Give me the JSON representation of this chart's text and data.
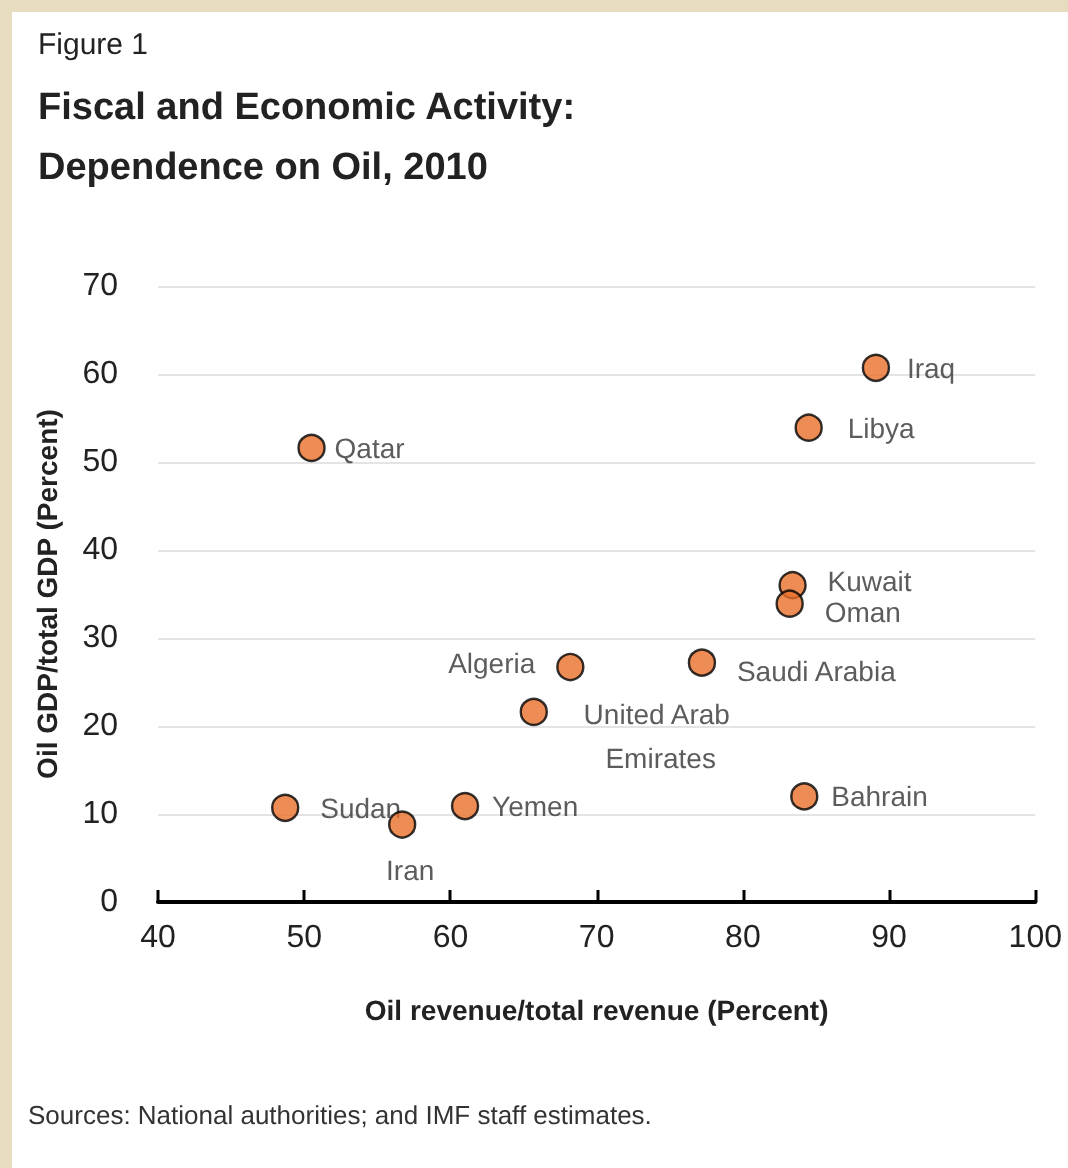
{
  "chart_data": {
    "type": "scatter",
    "subtitle": "Figure 1",
    "title": "Fiscal and Economic Activity: Dependence on Oil, 2010",
    "xlabel": "Oil revenue/total revenue (Percent)",
    "ylabel": "Oil GDP/total GDP (Percent)",
    "x": [
      50.5,
      89.1,
      84.5,
      83.4,
      83.2,
      77.2,
      68.2,
      65.7,
      84.2,
      61.0,
      48.7,
      56.7
    ],
    "values": [
      51.6,
      60.7,
      53.9,
      36.0,
      33.9,
      27.2,
      26.7,
      21.6,
      12.0,
      10.9,
      10.7,
      8.8
    ],
    "color": "#e8702a",
    "marker": "circle",
    "xlim": [
      40,
      100
    ],
    "xticks": [
      40,
      50,
      60,
      70,
      80,
      90,
      100
    ],
    "ylim": [
      0,
      70
    ],
    "yticks": [
      0,
      10,
      20,
      30,
      40,
      50,
      60,
      70
    ],
    "grid": "y",
    "annotations": [
      {
        "text": "Qatar",
        "x": 50.5,
        "y": 51.6
      },
      {
        "text": "Iraq",
        "x": 89.1,
        "y": 60.7
      },
      {
        "text": "Libya",
        "x": 84.5,
        "y": 53.9
      },
      {
        "text": "Kuwait",
        "x": 83.4,
        "y": 36.0
      },
      {
        "text": "Oman",
        "x": 83.2,
        "y": 33.9
      },
      {
        "text": "Saudi Arabia",
        "x": 77.2,
        "y": 27.2
      },
      {
        "text": "Algeria",
        "x": 68.2,
        "y": 26.7
      },
      {
        "text": "United Arab Emirates",
        "x": 65.7,
        "y": 21.6
      },
      {
        "text": "Bahrain",
        "x": 84.2,
        "y": 12.0
      },
      {
        "text": "Yemen",
        "x": 61.0,
        "y": 10.9
      },
      {
        "text": "Sudan",
        "x": 48.7,
        "y": 10.7
      },
      {
        "text": "Iran",
        "x": 56.7,
        "y": 8.8
      },
      "Sources: National authorities; and IMF staff estimates."
    ]
  }
}
